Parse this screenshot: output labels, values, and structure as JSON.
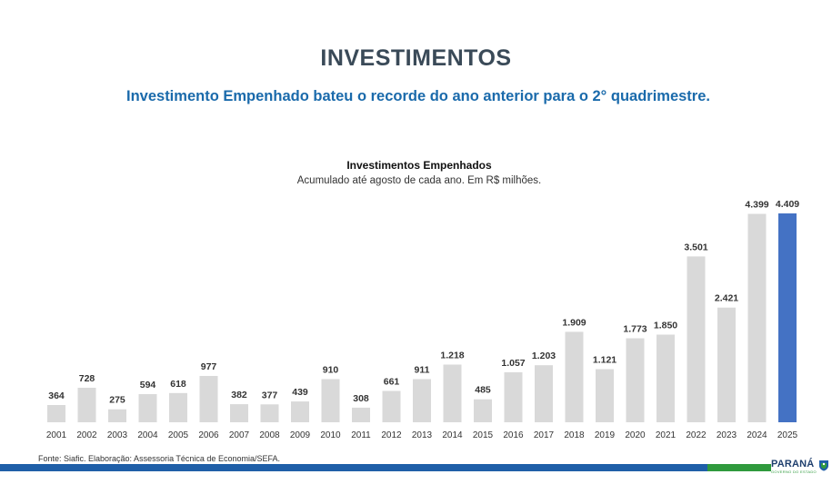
{
  "header": {
    "title": "INVESTIMENTOS",
    "subtitle": "Investimento Empenhado bateu o recorde do ano anterior para o 2° quadrimestre."
  },
  "footer": {
    "source": "Fonte: Siafic. Elaboração: Assessoria Técnica de Economia/SEFA.",
    "brand": "PARANÁ",
    "brand_tagline": "GOVERNO DO ESTADO",
    "brand_icon": "state-crest-icon"
  },
  "colors": {
    "bar_default": "#d9d9d9",
    "bar_highlight": "#4472c4",
    "title": "#3a4a58",
    "subtitle": "#1a6aab",
    "footer_blue": "#1f5fa8",
    "footer_green": "#2f9a3d"
  },
  "chart_data": {
    "type": "bar",
    "title": "Investimentos Empenhados",
    "subtitle": "Acumulado até agosto de cada ano. Em R$ milhões.",
    "categories": [
      "2001",
      "2002",
      "2003",
      "2004",
      "2005",
      "2006",
      "2007",
      "2008",
      "2009",
      "2010",
      "2011",
      "2012",
      "2013",
      "2014",
      "2015",
      "2016",
      "2017",
      "2018",
      "2019",
      "2020",
      "2021",
      "2022",
      "2023",
      "2024",
      "2025"
    ],
    "values": [
      364,
      728,
      275,
      594,
      618,
      977,
      382,
      377,
      439,
      910,
      308,
      661,
      911,
      1218,
      485,
      1057,
      1203,
      1909,
      1121,
      1773,
      1850,
      3501,
      2421,
      4399,
      4409
    ],
    "value_labels": [
      "364",
      "728",
      "275",
      "594",
      "618",
      "977",
      "382",
      "377",
      "439",
      "910",
      "308",
      "661",
      "911",
      "1.218",
      "485",
      "1.057",
      "1.203",
      "1.909",
      "1.121",
      "1.773",
      "1.850",
      "3.501",
      "2.421",
      "4.399",
      "4.409"
    ],
    "highlight": [
      "2025"
    ],
    "ylim": [
      0,
      4409
    ],
    "grid": false,
    "legend": "none",
    "xlabel": "",
    "ylabel": ""
  }
}
